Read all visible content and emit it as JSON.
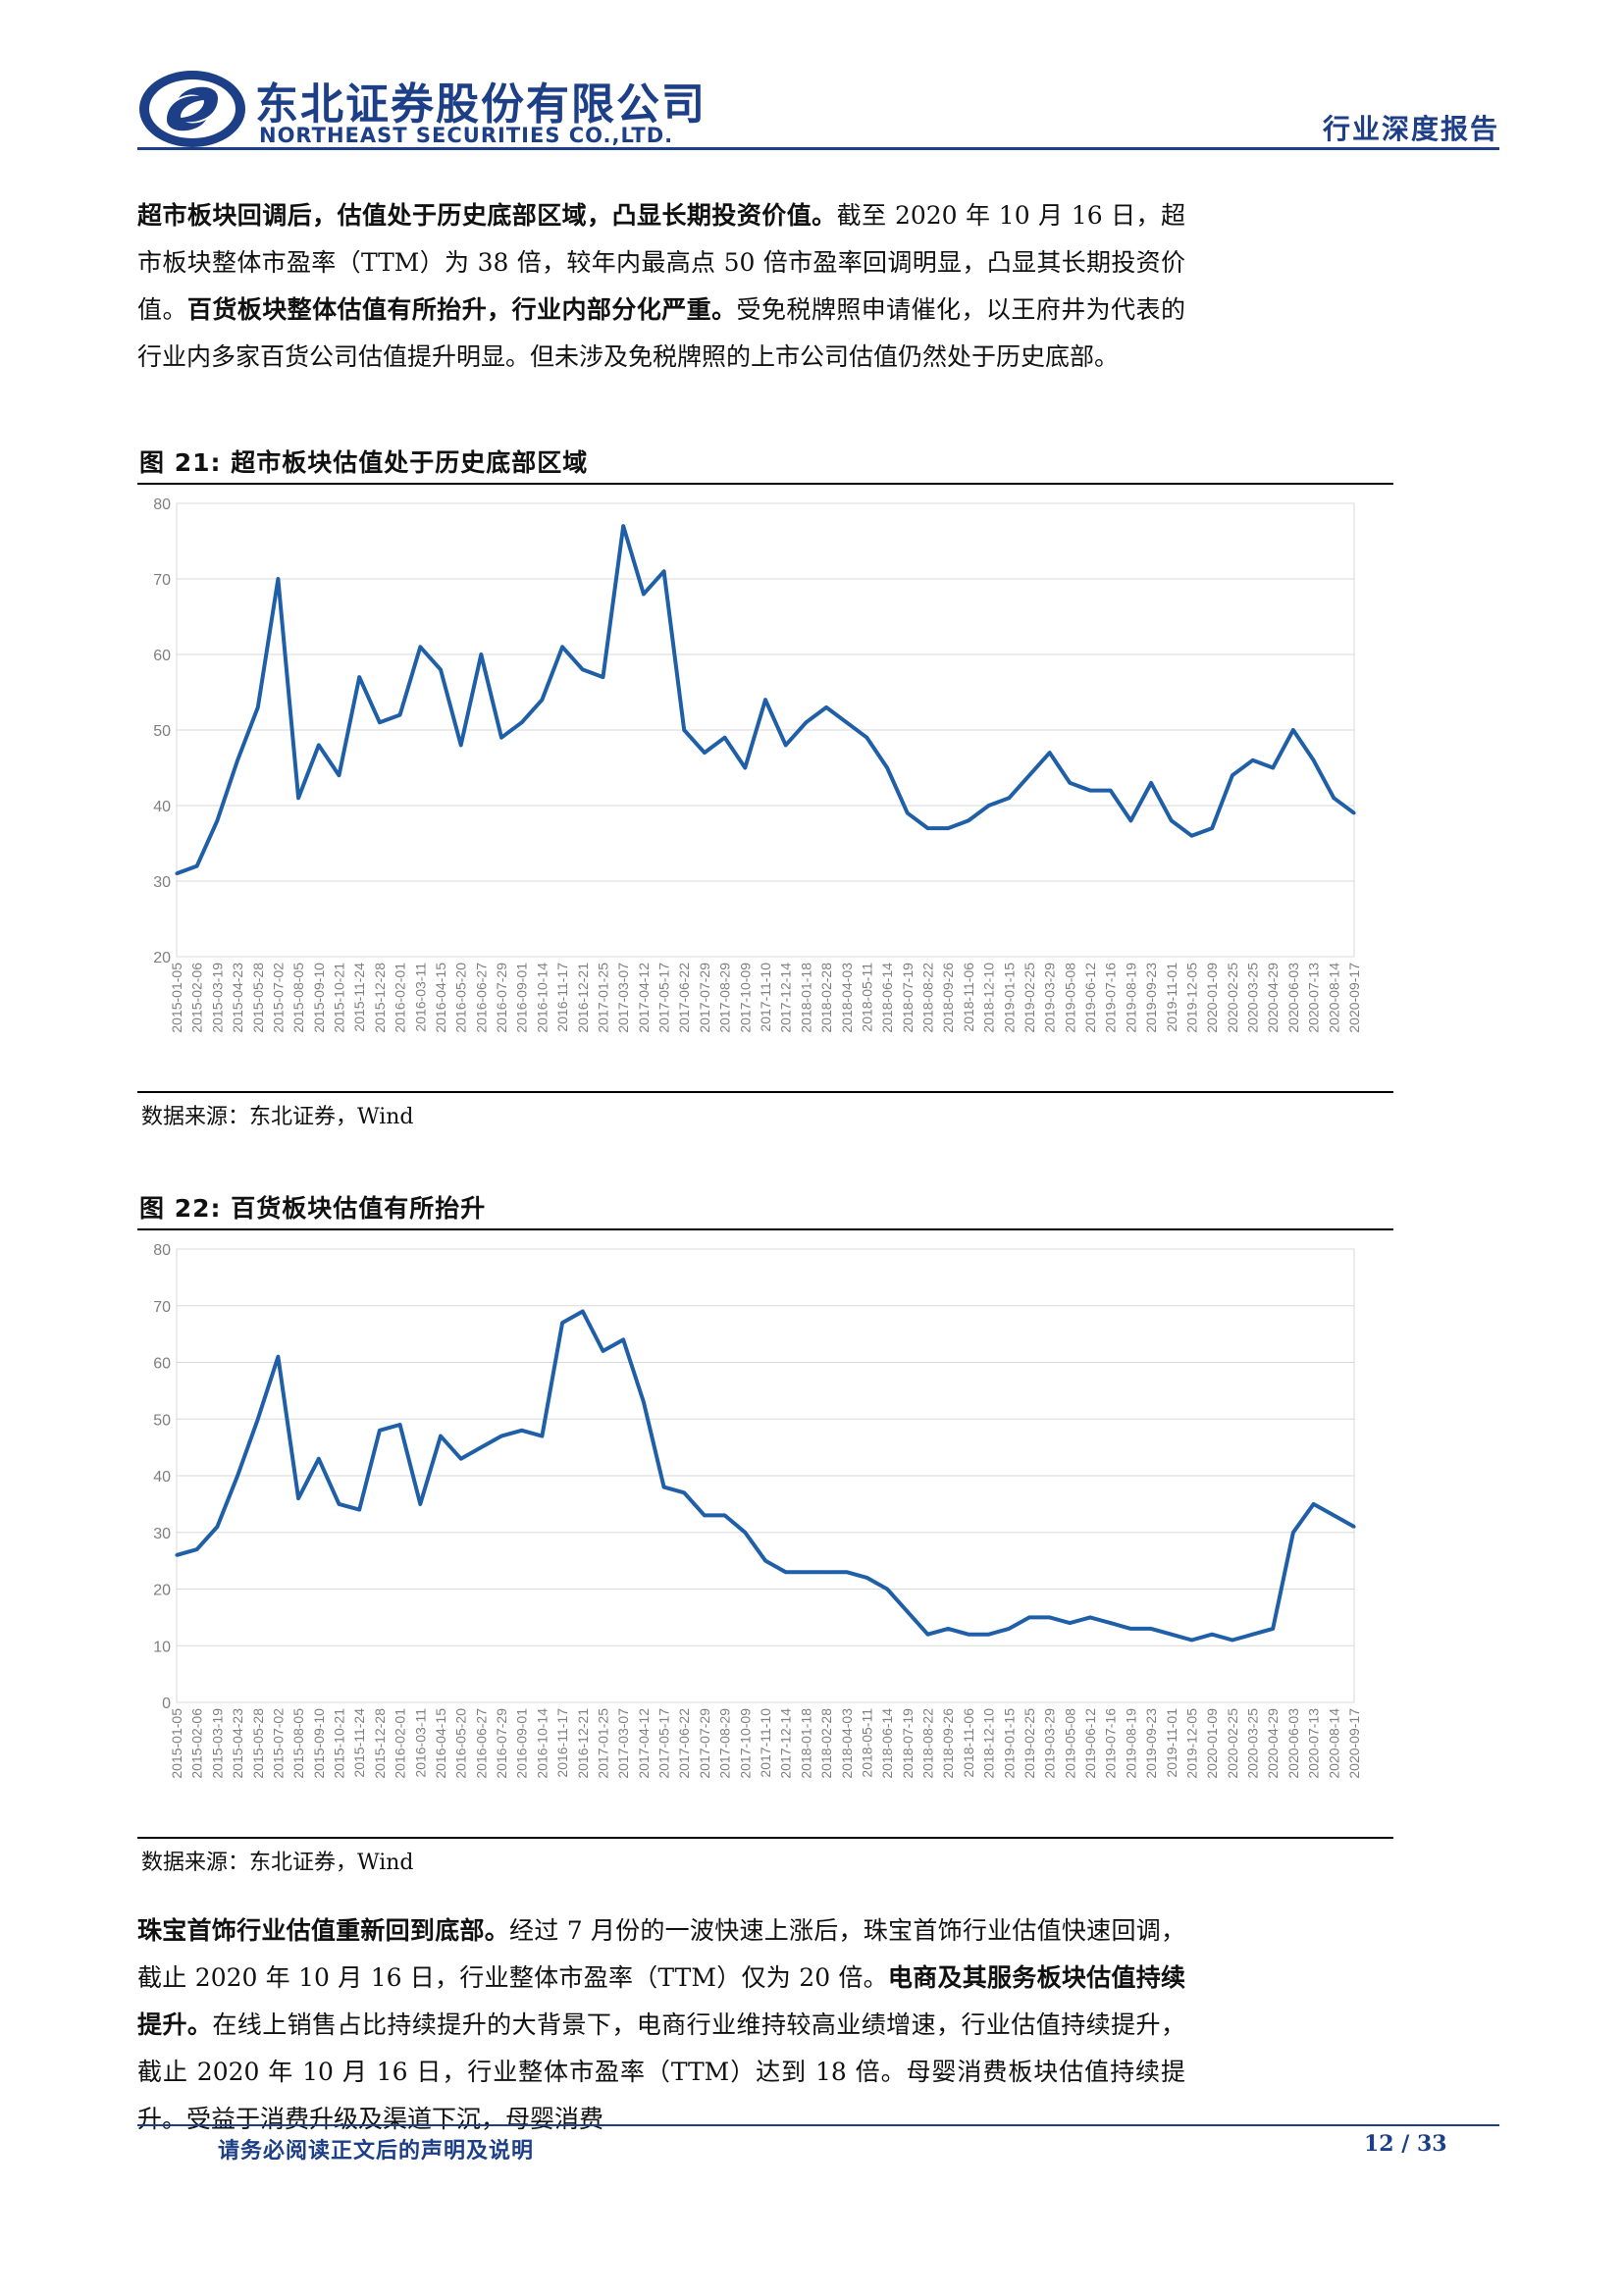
{
  "header": {
    "company_cn": "东北证券股份有限公司",
    "company_en": "NORTHEAST SECURITIES CO.,LTD.",
    "report_type": "行业深度报告"
  },
  "para1": {
    "bold1": "超市板块回调后，估值处于历史底部区域，凸显长期投资价值。",
    "text1": "截至 2020 年 10 月 16 日，超市板块整体市盈率（TTM）为 38 倍，较年内最高点 50 倍市盈率回调明显，凸显其长期投资价值。",
    "bold2": "百货板块整体估值有所抬升，行业内部分化严重。",
    "text2": "受免税牌照申请催化，以王府井为代表的行业内多家百货公司估值提升明显。但未涉及免税牌照的上市公司估值仍然处于历史底部。"
  },
  "fig21": {
    "title": "图  21: 超市板块估值处于历史底部区域",
    "source": "数据来源：东北证券，Wind"
  },
  "fig22": {
    "title": "图  22: 百货板块估值有所抬升",
    "source": "数据来源：东北证券，Wind"
  },
  "para2": {
    "bold1": "珠宝首饰行业估值重新回到底部。",
    "text1": "经过 7 月份的一波快速上涨后，珠宝首饰行业估值快速回调，截止 2020 年 10 月 16 日，行业整体市盈率（TTM）仅为 20 倍。",
    "bold2": "电商及其服务板块估值持续提升。",
    "text2": "在线上销售占比持续提升的大背景下，电商行业维持较高业绩增速，行业估值持续提升，截止 2020 年 10 月 16 日，行业整体市盈率（TTM）达到 18 倍。母婴消费板块估值持续提升。受益于消费升级及渠道下沉，母婴消费"
  },
  "footer": {
    "disclaimer": "请务必阅读正文后的声明及说明",
    "page": "12 / 33"
  },
  "colors": {
    "brand": "#1c3f87",
    "line": "#1f5fa8",
    "grid": "#d9d9d9",
    "axis_text": "#7f7f7f"
  },
  "chart_data": [
    {
      "type": "line",
      "title": "",
      "ylim": [
        20,
        80
      ],
      "yticks": [
        20,
        30,
        40,
        50,
        60,
        70,
        80
      ],
      "grid": true,
      "legend": "none",
      "categories": [
        "2015-01-05",
        "2015-02-06",
        "2015-03-19",
        "2015-04-23",
        "2015-05-28",
        "2015-07-02",
        "2015-08-05",
        "2015-09-10",
        "2015-10-21",
        "2015-11-24",
        "2015-12-28",
        "2016-02-01",
        "2016-03-11",
        "2016-04-15",
        "2016-05-20",
        "2016-06-27",
        "2016-07-29",
        "2016-09-01",
        "2016-10-14",
        "2016-11-17",
        "2016-12-21",
        "2017-01-25",
        "2017-03-07",
        "2017-04-12",
        "2017-05-17",
        "2017-06-22",
        "2017-07-29",
        "2017-08-29",
        "2017-10-09",
        "2017-11-10",
        "2017-12-14",
        "2018-01-18",
        "2018-02-28",
        "2018-04-03",
        "2018-05-11",
        "2018-06-14",
        "2018-07-19",
        "2018-08-22",
        "2018-09-26",
        "2018-11-06",
        "2018-12-10",
        "2019-01-15",
        "2019-02-25",
        "2019-03-29",
        "2019-05-08",
        "2019-06-12",
        "2019-07-16",
        "2019-08-19",
        "2019-09-23",
        "2019-11-01",
        "2019-12-05",
        "2020-01-09",
        "2020-02-25",
        "2020-03-25",
        "2020-04-29",
        "2020-06-03",
        "2020-07-13",
        "2020-08-14",
        "2020-09-17"
      ],
      "series": [
        {
          "values": [
            31,
            32,
            38,
            46,
            53,
            70,
            41,
            48,
            44,
            57,
            51,
            52,
            61,
            58,
            48,
            60,
            49,
            51,
            54,
            61,
            58,
            57,
            77,
            68,
            71,
            50,
            47,
            49,
            45,
            54,
            48,
            51,
            53,
            51,
            49,
            45,
            39,
            37,
            37,
            38,
            40,
            41,
            44,
            47,
            43,
            42,
            42,
            38,
            43,
            38,
            36,
            37,
            44,
            46,
            45,
            50,
            46,
            41,
            39
          ]
        }
      ]
    },
    {
      "type": "line",
      "title": "",
      "ylim": [
        0,
        80
      ],
      "yticks": [
        0,
        10,
        20,
        30,
        40,
        50,
        60,
        70,
        80
      ],
      "grid": true,
      "legend": "none",
      "categories": [
        "2015-01-05",
        "2015-02-06",
        "2015-03-19",
        "2015-04-23",
        "2015-05-28",
        "2015-07-02",
        "2015-08-05",
        "2015-09-10",
        "2015-10-21",
        "2015-11-24",
        "2015-12-28",
        "2016-02-01",
        "2016-03-11",
        "2016-04-15",
        "2016-05-20",
        "2016-06-27",
        "2016-07-29",
        "2016-09-01",
        "2016-10-14",
        "2016-11-17",
        "2016-12-21",
        "2017-01-25",
        "2017-03-07",
        "2017-04-12",
        "2017-05-17",
        "2017-06-22",
        "2017-07-29",
        "2017-08-29",
        "2017-10-09",
        "2017-11-10",
        "2017-12-14",
        "2018-01-18",
        "2018-02-28",
        "2018-04-03",
        "2018-05-11",
        "2018-06-14",
        "2018-07-19",
        "2018-08-22",
        "2018-09-26",
        "2018-11-06",
        "2018-12-10",
        "2019-01-15",
        "2019-02-25",
        "2019-03-29",
        "2019-05-08",
        "2019-06-12",
        "2019-07-16",
        "2019-08-19",
        "2019-09-23",
        "2019-11-01",
        "2019-12-05",
        "2020-01-09",
        "2020-02-25",
        "2020-03-25",
        "2020-04-29",
        "2020-06-03",
        "2020-07-13",
        "2020-08-14",
        "2020-09-17"
      ],
      "series": [
        {
          "values": [
            26,
            27,
            31,
            40,
            50,
            61,
            36,
            43,
            35,
            34,
            48,
            49,
            35,
            47,
            43,
            45,
            47,
            48,
            47,
            67,
            69,
            62,
            64,
            53,
            38,
            37,
            33,
            33,
            30,
            25,
            23,
            23,
            23,
            23,
            22,
            20,
            16,
            12,
            13,
            12,
            12,
            13,
            15,
            15,
            14,
            15,
            14,
            13,
            13,
            12,
            11,
            12,
            11,
            12,
            13,
            30,
            35,
            33,
            31
          ]
        }
      ]
    }
  ]
}
